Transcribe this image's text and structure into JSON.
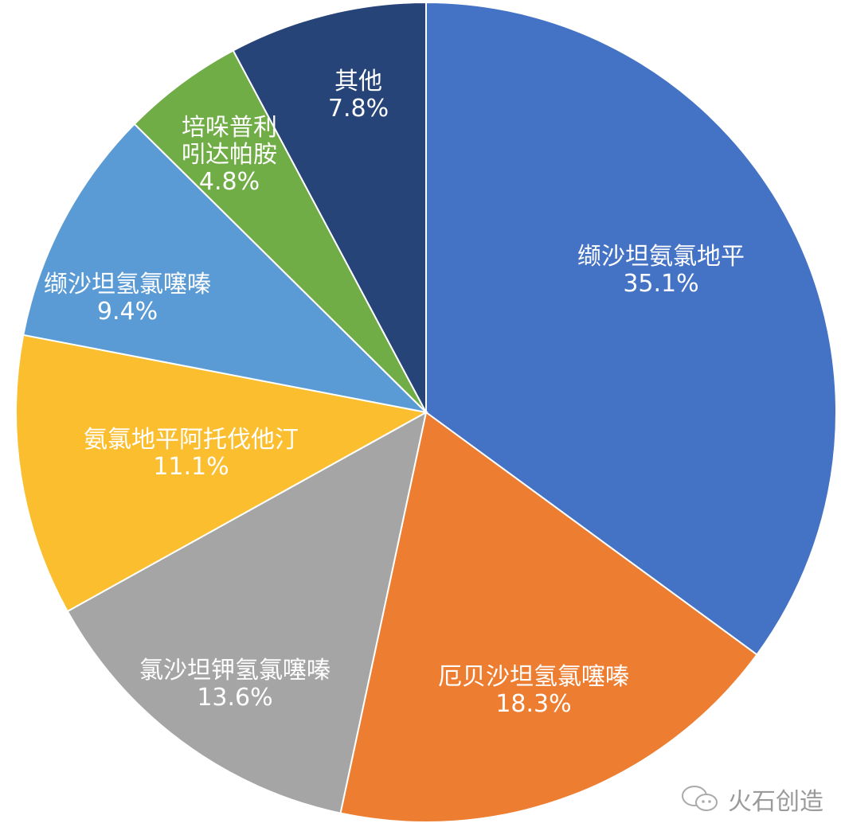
{
  "chart_data": {
    "type": "pie",
    "start": "12 o'clock",
    "direction": "clockwise",
    "slices": [
      {
        "label": "缬沙坦氨氯地平",
        "value": 35.1,
        "display": "35.1%",
        "color": "#4472C4"
      },
      {
        "label": "厄贝沙坦氢氯噻嗪",
        "value": 18.3,
        "display": "18.3%",
        "color": "#ED7D31"
      },
      {
        "label": "氯沙坦钾氢氯噻嗪",
        "value": 13.6,
        "display": "13.6%",
        "color": "#A5A5A5"
      },
      {
        "label": "氨氯地平阿托伐他汀",
        "value": 11.1,
        "display": "11.1%",
        "color": "#FBBE2E"
      },
      {
        "label": "缬沙坦氢氯噻嗪",
        "value": 9.4,
        "display": "9.4%",
        "color": "#5B9BD5"
      },
      {
        "label": "培哚普利\n吲达帕胺",
        "value": 4.8,
        "display": "4.8%",
        "color": "#70AD47"
      },
      {
        "label": "其他",
        "value": 7.8,
        "display": "7.8%",
        "color": "#264478"
      }
    ]
  },
  "watermark": {
    "text": "火石创造",
    "icon": "wechat-icon"
  }
}
